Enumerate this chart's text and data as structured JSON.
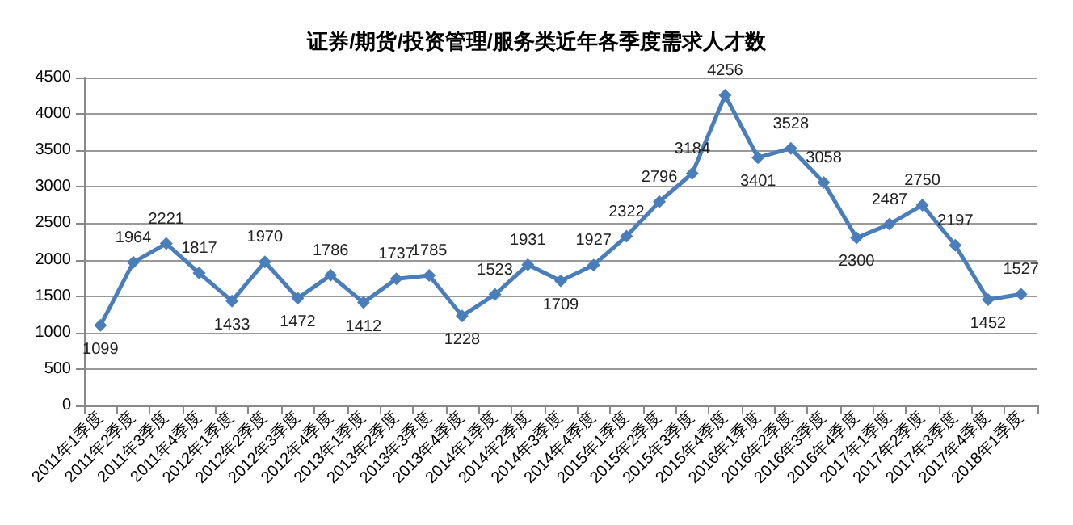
{
  "chart_data": {
    "type": "line",
    "title": "证券/期货/投资管理/服务类近年各季度需求人才数",
    "categories": [
      "2011年1季度",
      "2011年2季度",
      "2011年3季度",
      "2011年4季度",
      "2012年1季度",
      "2012年2季度",
      "2012年3季度",
      "2012年4季度",
      "2013年1季度",
      "2013年2季度",
      "2013年3季度",
      "2013年4季度",
      "2014年1季度",
      "2014年2季度",
      "2014年3季度",
      "2014年4季度",
      "2015年1季度",
      "2015年2季度",
      "2015年3季度",
      "2015年4季度",
      "2016年1季度",
      "2016年2季度",
      "2016年3季度",
      "2016年4季度",
      "2017年1季度",
      "2017年2季度",
      "2017年3季度",
      "2017年4季度",
      "2018年1季度"
    ],
    "series": [
      {
        "color": "#4a7ebb",
        "values": [
          1099,
          1964,
          2221,
          1817,
          1433,
          1970,
          1472,
          1786,
          1412,
          1737,
          1785,
          1228,
          1523,
          1931,
          1709,
          1927,
          2322,
          2796,
          3184,
          4256,
          3401,
          3528,
          3058,
          2300,
          2487,
          2750,
          2197,
          1452,
          1527
        ]
      }
    ],
    "ylim": [
      0,
      4500
    ],
    "yticks": [
      0,
      500,
      1000,
      1500,
      2000,
      2500,
      3000,
      3500,
      4000,
      4500
    ],
    "grid": "y",
    "marker": "diamond",
    "line_style": "solid",
    "data_labels": true
  }
}
